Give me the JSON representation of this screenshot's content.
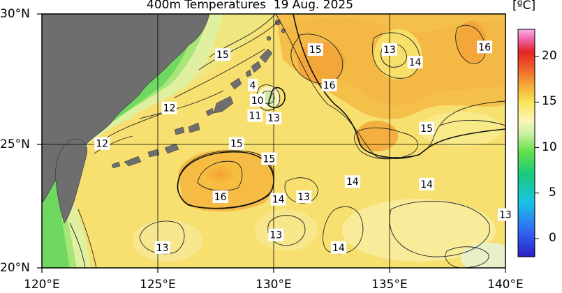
{
  "title": "400m Temperatures  19 Aug. 2025",
  "map": {
    "lon_range": [
      120,
      140
    ],
    "lat_range": [
      20,
      30
    ],
    "x_ticks": [
      "120°E",
      "125°E",
      "130°E",
      "135°E",
      "140°E"
    ],
    "y_ticks": [
      "30°N",
      "25°N",
      "20°N"
    ],
    "grid": true,
    "land_color": "#6e6e6e",
    "contour_labels": [
      {
        "text": "15",
        "lon": 127.8,
        "lat": 28.4
      },
      {
        "text": "4",
        "lon": 129.1,
        "lat": 27.2
      },
      {
        "text": "10",
        "lon": 129.3,
        "lat": 26.6
      },
      {
        "text": "11",
        "lon": 129.2,
        "lat": 26.0
      },
      {
        "text": "13",
        "lon": 130.0,
        "lat": 25.9
      },
      {
        "text": "12",
        "lon": 125.5,
        "lat": 26.3
      },
      {
        "text": "15",
        "lon": 128.4,
        "lat": 24.9
      },
      {
        "text": "12",
        "lon": 122.6,
        "lat": 24.9
      },
      {
        "text": "15",
        "lon": 129.8,
        "lat": 24.3
      },
      {
        "text": "16",
        "lon": 127.7,
        "lat": 22.8
      },
      {
        "text": "14",
        "lon": 130.2,
        "lat": 22.7
      },
      {
        "text": "13",
        "lon": 131.3,
        "lat": 22.8
      },
      {
        "text": "15",
        "lon": 131.8,
        "lat": 28.6
      },
      {
        "text": "16",
        "lon": 132.4,
        "lat": 27.2
      },
      {
        "text": "13",
        "lon": 135.0,
        "lat": 28.6
      },
      {
        "text": "14",
        "lon": 136.1,
        "lat": 28.1
      },
      {
        "text": "16",
        "lon": 139.1,
        "lat": 28.7
      },
      {
        "text": "15",
        "lon": 136.6,
        "lat": 25.5
      },
      {
        "text": "14",
        "lon": 133.4,
        "lat": 23.4
      },
      {
        "text": "14",
        "lon": 136.6,
        "lat": 23.3
      },
      {
        "text": "13",
        "lon": 140.0,
        "lat": 22.1
      },
      {
        "text": "13",
        "lon": 130.1,
        "lat": 21.3
      },
      {
        "text": "14",
        "lon": 132.8,
        "lat": 20.8
      },
      {
        "text": "13",
        "lon": 125.2,
        "lat": 20.8
      }
    ]
  },
  "colorbar": {
    "unit": "[ºC]",
    "ticks": [
      "20",
      "15",
      "10",
      "5",
      "0"
    ],
    "min": -2,
    "max": 23
  }
}
